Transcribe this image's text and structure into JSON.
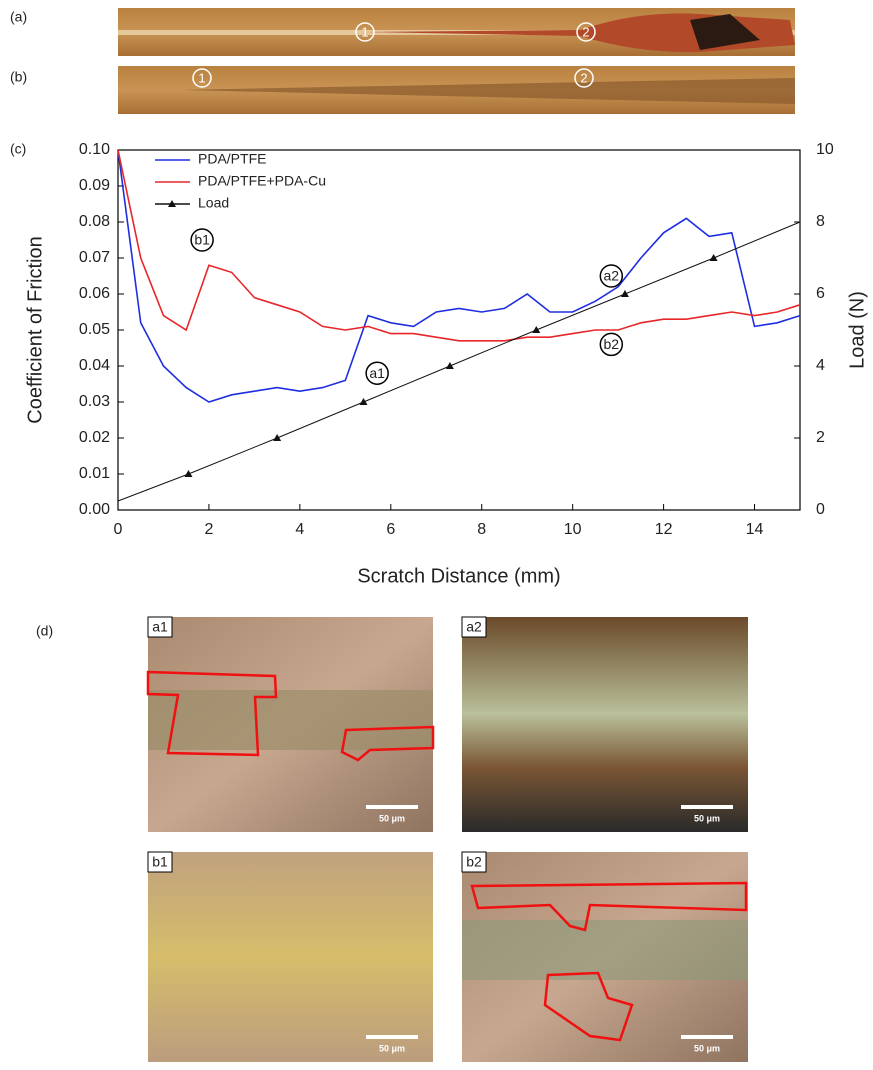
{
  "panels": {
    "a": {
      "label": "(a)",
      "markers": [
        "1",
        "2"
      ]
    },
    "b": {
      "label": "(b)",
      "markers": [
        "1",
        "2"
      ]
    },
    "c": {
      "label": "(c)"
    },
    "d": {
      "label": "(d)",
      "images": [
        "a1",
        "a2",
        "b1",
        "b2"
      ],
      "scale": [
        "50 μm",
        "50 μm",
        "50 μm",
        "50 μm"
      ]
    }
  },
  "chart_data": {
    "type": "line",
    "xlabel": "Scratch Distance (mm)",
    "ylabel": "Coefficient of Friction",
    "y2label": "Load (N)",
    "x": [
      0,
      0.5,
      1,
      1.5,
      2,
      2.5,
      3,
      3.5,
      4,
      4.5,
      5,
      5.5,
      6,
      6.5,
      7,
      7.5,
      8,
      8.5,
      9,
      9.5,
      10,
      10.5,
      11,
      11.5,
      12,
      12.5,
      13,
      13.5,
      14,
      14.5,
      15
    ],
    "series": [
      {
        "name": "PDA/PTFE",
        "color": "#1f2ee0",
        "values": [
          0.1,
          0.052,
          0.04,
          0.034,
          0.03,
          0.032,
          0.033,
          0.034,
          0.033,
          0.034,
          0.036,
          0.054,
          0.052,
          0.051,
          0.055,
          0.056,
          0.055,
          0.056,
          0.06,
          0.055,
          0.055,
          0.058,
          0.062,
          0.07,
          0.077,
          0.081,
          0.076,
          0.077,
          0.051,
          0.052,
          0.054
        ]
      },
      {
        "name": "PDA/PTFE+PDA-Cu",
        "color": "#e8262a",
        "values": [
          0.1,
          0.07,
          0.054,
          0.05,
          0.068,
          0.066,
          0.059,
          0.057,
          0.055,
          0.051,
          0.05,
          0.051,
          0.049,
          0.049,
          0.048,
          0.047,
          0.047,
          0.047,
          0.048,
          0.048,
          0.049,
          0.05,
          0.05,
          0.052,
          0.053,
          0.053,
          0.054,
          0.055,
          0.054,
          0.055,
          0.057
        ]
      },
      {
        "name": "Load",
        "color": "#111111",
        "axis": "y2",
        "x": [
          0,
          1.55,
          3.5,
          5.4,
          7.3,
          9.2,
          11.15,
          13.1,
          15
        ],
        "values": [
          0.25,
          1,
          2,
          3,
          4,
          5,
          6,
          7,
          8
        ]
      }
    ],
    "annotations": [
      {
        "text": "a1",
        "x": 5.7,
        "y": 0.038
      },
      {
        "text": "b1",
        "x": 1.85,
        "y": 0.075
      },
      {
        "text": "a2",
        "x": 10.85,
        "y": 0.065
      },
      {
        "text": "b2",
        "x": 10.85,
        "y": 0.046
      }
    ],
    "xlim": [
      0,
      15
    ],
    "xticks": [
      0,
      2,
      4,
      6,
      8,
      10,
      12,
      14
    ],
    "ylim": [
      0,
      0.1
    ],
    "yticks": [
      {
        "value": 0,
        "label": "0.00"
      },
      0.01,
      0.02,
      0.03,
      0.04,
      0.05,
      0.06,
      0.07,
      0.08,
      0.09,
      {
        "value": 0.1,
        "label": "0.10"
      }
    ],
    "y2lim": [
      0,
      10
    ],
    "y2ticks": [
      0,
      2,
      4,
      6,
      8,
      10
    ]
  }
}
